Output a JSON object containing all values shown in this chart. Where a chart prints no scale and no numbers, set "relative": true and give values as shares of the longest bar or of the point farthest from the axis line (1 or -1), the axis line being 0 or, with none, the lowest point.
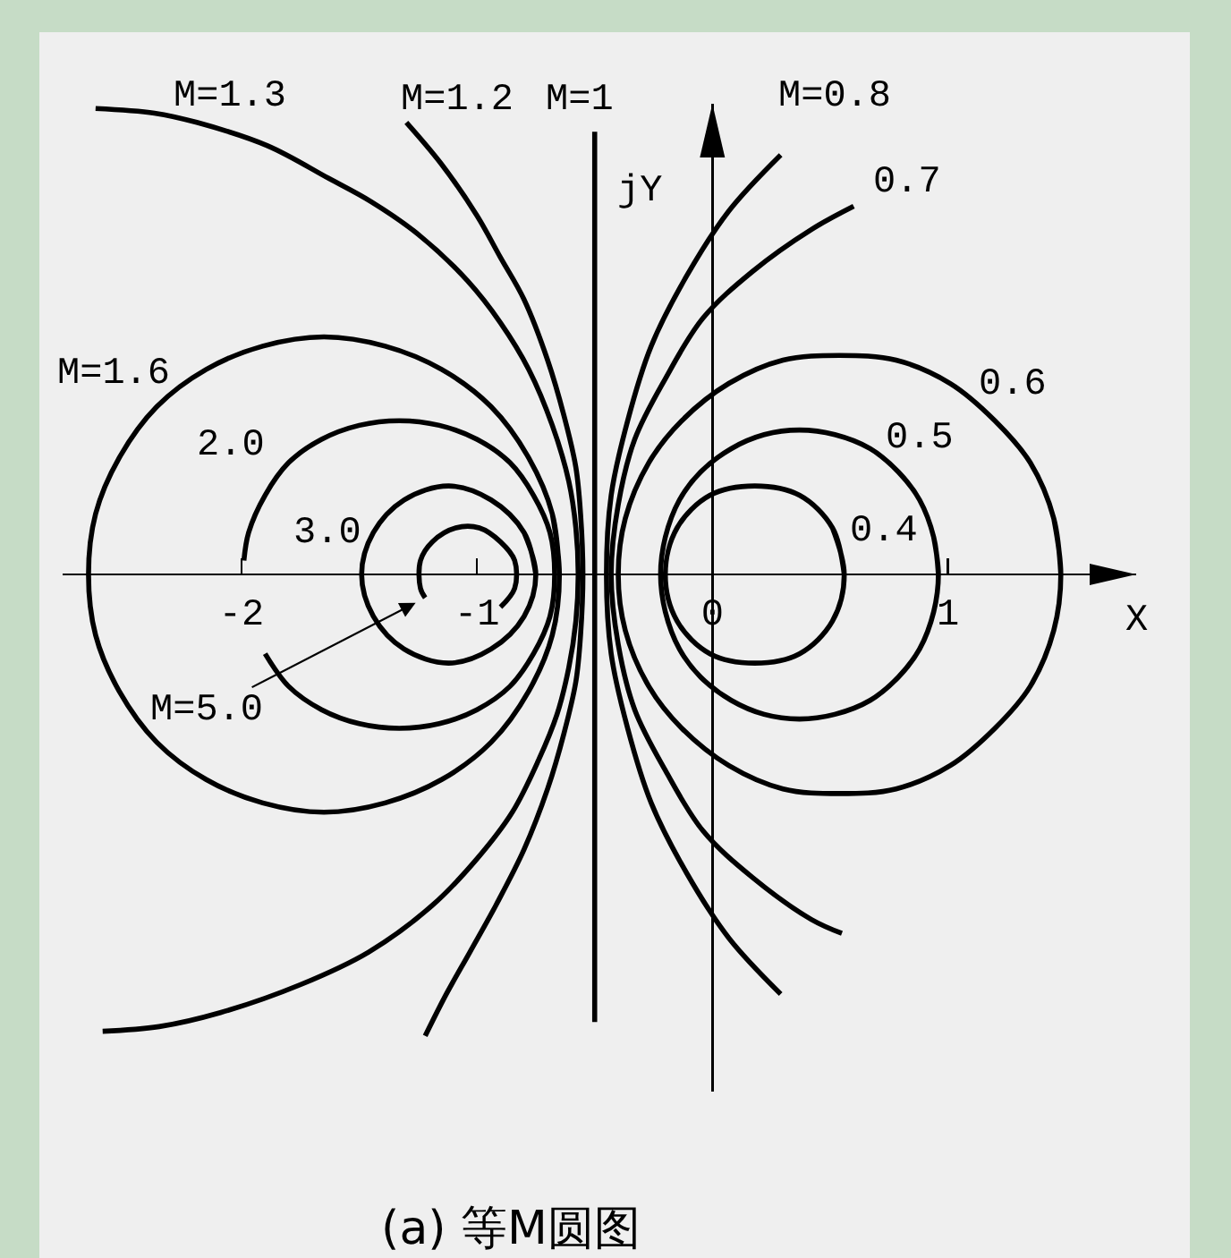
{
  "chart_data": {
    "type": "line",
    "title": "(a) 等M圆图",
    "xlabel": "X",
    "ylabel": "jY",
    "relative": true,
    "xlim": [
      -2.76,
      1.8
    ],
    "xticks": [
      -2,
      -1,
      0,
      1
    ],
    "tick_labels": "x",
    "series": [
      {
        "name": "M=1.3",
        "color": "#000000",
        "x": [
          -2.62,
          -2.37,
          -2.19,
          -1.89,
          -1.63,
          -1.45,
          -1.25,
          -1.04,
          -0.9,
          -0.78,
          -0.68,
          -0.61,
          -0.58,
          -0.57,
          -0.58,
          -0.61,
          -0.66,
          -0.74,
          -0.85,
          -1.0,
          -1.19,
          -1.46,
          -1.75,
          -2.09,
          -2.35,
          -2.59
        ],
        "values": [
          1,
          0.99,
          0.97,
          0.92,
          0.85,
          0.8,
          0.73,
          0.63,
          0.54,
          0.44,
          0.32,
          0.2,
          0.1,
          0,
          -0.1,
          -0.2,
          -0.3,
          -0.4,
          -0.51,
          -0.61,
          -0.71,
          -0.81,
          -0.88,
          -0.94,
          -0.97,
          -0.98
        ]
      },
      {
        "name": "M=1.2",
        "color": "#000000",
        "x": [
          -1.3,
          -1.15,
          -1.0,
          -0.9,
          -0.8,
          -0.7,
          -0.63,
          -0.58,
          -0.56,
          -0.55,
          -0.56,
          -0.58,
          -0.63,
          -0.7,
          -0.8,
          -0.92,
          -1.03,
          -1.13,
          -1.22
        ],
        "values": [
          0.97,
          0.88,
          0.77,
          0.68,
          0.59,
          0.46,
          0.34,
          0.23,
          0.13,
          0,
          -0.13,
          -0.23,
          -0.34,
          -0.46,
          -0.59,
          -0.71,
          -0.81,
          -0.9,
          -0.99
        ]
      },
      {
        "name": "M=1",
        "color": "#000000",
        "x": [
          -0.5,
          -0.5
        ],
        "values": [
          0.95,
          -0.96
        ]
      },
      {
        "name": "M=0.8",
        "color": "#000000",
        "x": [
          0.29,
          0.07,
          -0.11,
          -0.26,
          -0.36,
          -0.43,
          -0.45,
          -0.43,
          -0.36,
          -0.26,
          -0.11,
          0.07,
          0.29
        ],
        "values": [
          0.9,
          0.78,
          0.64,
          0.49,
          0.33,
          0.17,
          0,
          -0.17,
          -0.33,
          -0.49,
          -0.64,
          -0.78,
          -0.9
        ]
      },
      {
        "name": "0.7",
        "color": "#000000",
        "x": [
          0.6,
          0.42,
          0.17,
          -0.04,
          -0.2,
          -0.33,
          -0.4,
          -0.43,
          -0.4,
          -0.33,
          -0.2,
          -0.04,
          0.17,
          0.42,
          0.55
        ],
        "values": [
          0.79,
          0.74,
          0.65,
          0.55,
          0.42,
          0.29,
          0.15,
          0,
          -0.15,
          -0.29,
          -0.42,
          -0.55,
          -0.65,
          -0.74,
          -0.77
        ]
      },
      {
        "name": "0.6",
        "color": "#000000",
        "x": [
          1.48,
          1.45,
          1.35,
          1.2,
          1.01,
          0.78,
          0.54,
          0.3,
          0.07,
          -0.13,
          -0.27,
          -0.37,
          -0.4,
          -0.37,
          -0.27,
          -0.13,
          0.07,
          0.3,
          0.54,
          0.78,
          1.01,
          1.2,
          1.35,
          1.45,
          1.48,
          1.45
        ],
        "values": [
          0,
          0.12,
          0.24,
          0.33,
          0.41,
          0.46,
          0.47,
          0.46,
          0.41,
          0.33,
          0.24,
          0.12,
          0,
          -0.12,
          -0.24,
          -0.33,
          -0.41,
          -0.46,
          -0.47,
          -0.46,
          -0.41,
          -0.33,
          -0.24,
          -0.12,
          0,
          0.12
        ]
      },
      {
        "name": "0.5",
        "color": "#000000",
        "x": [
          0.96,
          0.94,
          0.88,
          0.79,
          0.67,
          0.52,
          0.37,
          0.22,
          0.08,
          -0.05,
          -0.14,
          -0.2,
          -0.22,
          -0.2,
          -0.14,
          -0.05,
          0.08,
          0.22,
          0.37,
          0.52,
          0.67,
          0.79,
          0.88,
          0.94,
          0.96,
          0.94
        ],
        "values": [
          0,
          0.08,
          0.16,
          0.22,
          0.27,
          0.3,
          0.31,
          0.3,
          0.27,
          0.22,
          0.16,
          0.08,
          0,
          -0.08,
          -0.16,
          -0.22,
          -0.27,
          -0.3,
          -0.31,
          -0.3,
          -0.27,
          -0.22,
          -0.16,
          -0.08,
          0,
          0.08
        ]
      },
      {
        "name": "0.4",
        "color": "#000000",
        "x": [
          0.56,
          0.51,
          0.37,
          0.18,
          -0.01,
          -0.15,
          -0.2,
          -0.15,
          -0.01,
          0.18,
          0.37,
          0.51,
          0.56,
          0.51
        ],
        "values": [
          0,
          0.1,
          0.17,
          0.19,
          0.17,
          0.1,
          0,
          -0.1,
          -0.17,
          -0.19,
          -0.17,
          -0.1,
          0,
          0.1
        ]
      },
      {
        "name": "M=1.6",
        "color": "#000000",
        "x": [
          -0.65,
          -0.68,
          -0.78,
          -0.94,
          -1.15,
          -1.39,
          -1.65,
          -1.91,
          -2.15,
          -2.36,
          -2.52,
          -2.62,
          -2.65,
          -2.62,
          -2.52,
          -2.36,
          -2.15,
          -1.91,
          -1.65,
          -1.39,
          -1.15,
          -0.94,
          -0.78,
          -0.68,
          -0.65,
          -0.68
        ],
        "values": [
          0,
          0.13,
          0.25,
          0.36,
          0.44,
          0.49,
          0.51,
          0.49,
          0.44,
          0.36,
          0.25,
          0.13,
          0,
          -0.13,
          -0.25,
          -0.36,
          -0.44,
          -0.49,
          -0.51,
          -0.49,
          -0.44,
          -0.36,
          -0.25,
          -0.13,
          0,
          0.13
        ]
      },
      {
        "name": "2.0",
        "color": "#000000",
        "x": [
          -1.9,
          -1.8,
          -1.66,
          -1.5,
          -1.33,
          -1.16,
          -1.0,
          -0.86,
          -0.76,
          -0.69,
          -0.67,
          -0.69,
          -0.76,
          -0.86,
          -1.0,
          -1.16,
          -1.33,
          -1.5,
          -1.66,
          -1.8,
          -1.9,
          -1.97,
          -1.99
        ],
        "values": [
          -0.17,
          -0.24,
          -0.29,
          -0.32,
          -0.33,
          -0.32,
          -0.29,
          -0.24,
          -0.17,
          -0.09,
          0,
          0.09,
          0.17,
          0.24,
          0.29,
          0.32,
          0.33,
          0.32,
          0.29,
          0.24,
          0.17,
          0.09,
          0.03
        ]
      },
      {
        "name": "3.0",
        "color": "#000000",
        "x": [
          -0.75,
          -0.8,
          -0.94,
          -1.12,
          -1.31,
          -1.44,
          -1.49,
          -1.44,
          -1.31,
          -1.12,
          -0.94,
          -0.8,
          -0.75,
          -0.8
        ],
        "values": [
          0,
          0.09,
          0.16,
          0.19,
          0.16,
          0.09,
          0,
          -0.09,
          -0.16,
          -0.19,
          -0.16,
          -0.09,
          0,
          0.09
        ]
      },
      {
        "name": "M=5.0",
        "color": "#000000",
        "x": [
          -0.9,
          -0.84,
          -0.84,
          -0.9,
          -0.99,
          -1.09,
          -1.19,
          -1.24,
          -1.24,
          -1.22
        ],
        "values": [
          -0.07,
          -0.03,
          0.03,
          0.07,
          0.1,
          0.1,
          0.07,
          0.03,
          -0.03,
          -0.05
        ]
      }
    ]
  }
}
